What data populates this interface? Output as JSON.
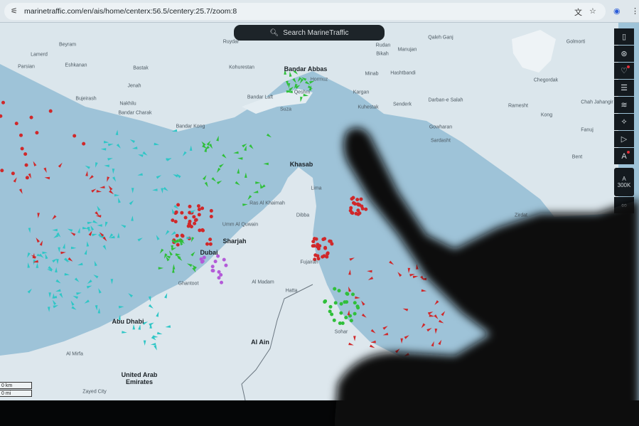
{
  "browser": {
    "url": "marinetraffic.com/en/ais/home/centerx:56.5/centery:25.7/zoom:8",
    "icons": [
      "site-settings-icon",
      "translate-icon",
      "star-icon",
      "profile-icon",
      "menu-icon"
    ]
  },
  "search": {
    "placeholder": "Search MarineTraffic"
  },
  "toolbar": {
    "items": [
      "map-book-icon",
      "filters-icon",
      "favorites-icon",
      "layers-icon",
      "weather-icon",
      "measure-icon",
      "play-icon",
      "labels-icon"
    ],
    "density_label": "A",
    "density_value": "300K",
    "infinity": "∞"
  },
  "scale": {
    "km": "0 km",
    "mi": "0 mi"
  },
  "places": [
    "Beyram",
    "Lamerd",
    "Parsian",
    "Eshkanan",
    "Bastak",
    "Jenah",
    "Bujeirash",
    "Nakhilu",
    "Bandar Charak",
    "Bandar Kong",
    "Ruydar",
    "Kohurestan",
    "Bandar Abbas",
    "Hormuz",
    "Qeshm",
    "Bandar Laft",
    "Suza",
    "Minab",
    "Hashtbandi",
    "Kargan",
    "Kuhestak",
    "Senderk",
    "Darban-e Salah",
    "Rudan",
    "Manujan",
    "Bikah",
    "Qaleh Ganj",
    "Golmorti",
    "Chegordak",
    "Ramesht",
    "Kong",
    "Chah Jahangir",
    "Gowharan",
    "Sardasht",
    "Fanuj",
    "Bent",
    "Khasab",
    "Lima",
    "Ras Al Khaimah",
    "Dibba",
    "Umm Al Quwain",
    "Sharjah",
    "Dubai",
    "Fujairah",
    "Al Madam",
    "Hatta",
    "Ghantoot",
    "Abu Dhabi",
    "Al Ain",
    "Sohar",
    "Al Mirfa",
    "United Arab Emirates",
    "Zayed City",
    "Zirdat"
  ],
  "major_places": [
    "Bandar Abbas",
    "Khasab",
    "Sharjah",
    "Dubai",
    "Abu Dhabi",
    "Al Ain",
    "United Arab Emirates"
  ],
  "vessel_colors": {
    "tanker": "#d0282a",
    "cargo": "#2fbf3a",
    "passenger": "#2a6fd8",
    "tug_special": "#2fc6c6",
    "pleasure": "#b35ad8",
    "unknown": "#9aa3aa",
    "fishing": "#e07a5a"
  },
  "colors": {
    "water": "#9ec3d8",
    "land": "#dde7ed",
    "toolbar": "#141a1f"
  }
}
